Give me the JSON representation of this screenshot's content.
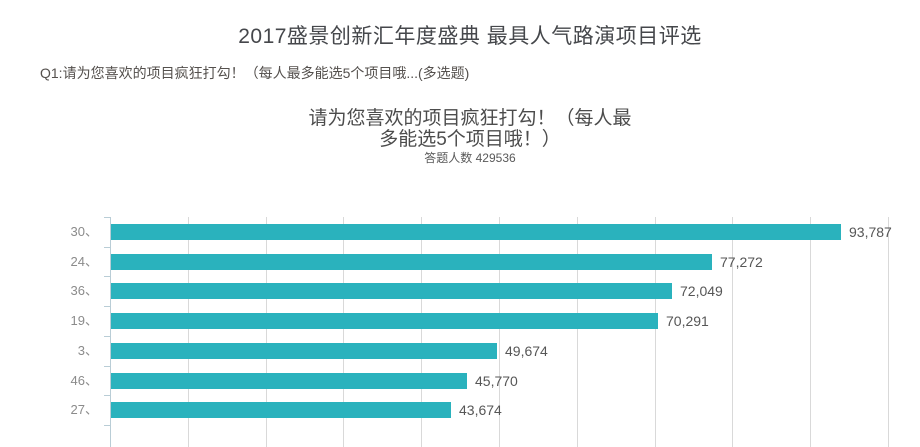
{
  "page": {
    "title": "2017盛景创新汇年度盛典 最具人气路演项目评选",
    "question": "Q1:请为您喜欢的项目疯狂打勾！（每人最多能选5个项目哦...(多选题)"
  },
  "chart_data": {
    "type": "bar",
    "orientation": "horizontal",
    "title": "请为您喜欢的项目疯狂打勾！（每人最多能选5个项目哦！）",
    "subtitle": "答题人数 429536",
    "respondents": 429536,
    "categories": [
      "30、",
      "24、",
      "36、",
      "19、",
      "3、",
      "46、",
      "27、"
    ],
    "values": [
      93787,
      77272,
      72049,
      70291,
      49674,
      45770,
      43674
    ],
    "value_labels": [
      "93,787",
      "77,272",
      "72,049",
      "70,291",
      "49,674",
      "45,770",
      "43,674"
    ],
    "xlabel": "",
    "ylabel": "",
    "xlim": [
      0,
      100000
    ],
    "grid_interval": 10000,
    "grid": "vertical",
    "legend": "none",
    "sort": "descending",
    "bar_color": "#2ab2bd",
    "gridline_color": "#d9d9d9",
    "axis_color": "#b9cdd6"
  }
}
